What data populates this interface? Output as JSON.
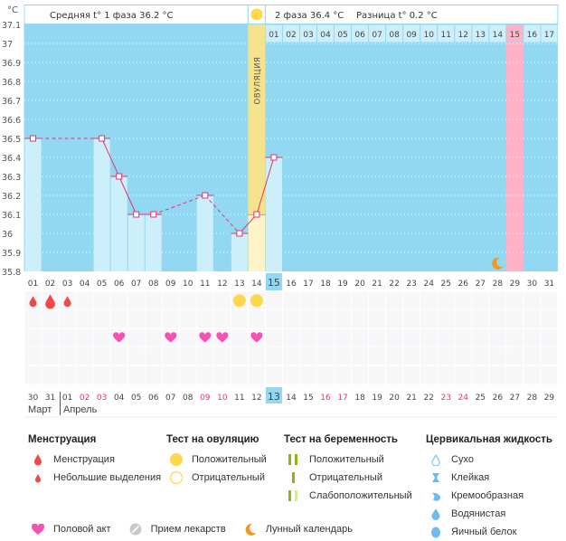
{
  "chart_data": {
    "type": "line",
    "title": "",
    "ylabel": "°C",
    "ylim": [
      35.8,
      37.1
    ],
    "yticks": [
      "37.1",
      "37",
      "36.9",
      "36.8",
      "36.7",
      "36.6",
      "36.5",
      "36.4",
      "36.3",
      "36.2",
      "36.1",
      "36",
      "35.9",
      "35.8"
    ],
    "grid": true,
    "cycle_days": [
      "01",
      "02",
      "03",
      "04",
      "05",
      "06",
      "07",
      "08",
      "09",
      "10",
      "11",
      "12",
      "13",
      "14",
      "15",
      "16",
      "17",
      "18",
      "19",
      "20",
      "21",
      "22",
      "23",
      "24",
      "25",
      "26",
      "27",
      "28",
      "29",
      "30",
      "31"
    ],
    "temperatures": [
      36.5,
      null,
      null,
      null,
      36.5,
      36.3,
      36.1,
      36.1,
      null,
      null,
      36.2,
      null,
      36.0,
      36.1,
      36.4,
      null,
      null,
      null,
      null,
      null,
      null,
      null,
      null,
      null,
      null,
      null,
      null,
      null,
      null,
      null,
      null
    ],
    "ovulation_day_index": 13,
    "ovulation_label": "ОВУЛЯЦИЯ",
    "current_day_index": 14,
    "phase2_days": [
      "01",
      "02",
      "03",
      "04",
      "05",
      "06",
      "07",
      "08",
      "09",
      "10",
      "11",
      "12",
      "13",
      "14",
      "15",
      "16",
      "17"
    ],
    "phase2_highlight_day": "15",
    "highlight_cycle_day_index": 28,
    "moon_day_index": 27,
    "series_color": "#e8336b"
  },
  "header": {
    "unit": "°C",
    "phase1_avg": "Средняя t° 1 фаза 36.2 °C",
    "phase2_avg": "2 фаза 36.4 °C",
    "difference": "Разница t° 0.2 °C"
  },
  "markers": {
    "menstruation": [
      {
        "day": 0,
        "size": "small"
      },
      {
        "day": 1,
        "size": "large"
      },
      {
        "day": 2,
        "size": "small"
      }
    ],
    "ovulation_test_positive": [
      12,
      13
    ],
    "intercourse": [
      5,
      8,
      10,
      11,
      13
    ]
  },
  "calendar": {
    "dates": [
      "30",
      "31",
      "01",
      "02",
      "03",
      "04",
      "05",
      "06",
      "07",
      "08",
      "09",
      "10",
      "11",
      "12",
      "13",
      "14",
      "15",
      "16",
      "17",
      "18",
      "19",
      "20",
      "21",
      "22",
      "23",
      "24",
      "25",
      "26",
      "27",
      "28",
      "29"
    ],
    "red_indices": [
      3,
      4,
      10,
      11,
      17,
      18,
      24,
      25
    ],
    "today_index": 14,
    "months": [
      {
        "label": "Март"
      },
      {
        "label": "Апрель"
      }
    ]
  },
  "legend": {
    "menstruation": {
      "title": "Менструация",
      "items": [
        "Менструация",
        "Небольшие выделения"
      ]
    },
    "ovulation_test": {
      "title": "Тест на овуляцию",
      "items": [
        "Положительный",
        "Отрицательный"
      ]
    },
    "pregnancy_test": {
      "title": "Тест на беременность",
      "items": [
        "Положительный",
        "Отрицательный",
        "Слабоположительный"
      ]
    },
    "cervical_fluid": {
      "title": "Цервикальная жидкость",
      "items": [
        "Сухо",
        "Клейкая",
        "Кремообразная",
        "Водянистая",
        "Яичный белок"
      ]
    },
    "bottom": [
      "Половой акт",
      "Прием лекарств",
      "Лунный календарь"
    ]
  },
  "colors": {
    "chart_bg": "#93d8f2",
    "bar": "#cdeefb",
    "ovulation": "#f5e38c",
    "ovulation_light": "#fdf5c8",
    "pink": "#ffb2c8",
    "line": "#e8336b",
    "drop": "#f24848",
    "heart": "#f553b4",
    "sun": "#fdd84a",
    "moon": "#f5991e",
    "red_date": "#e8336b",
    "green": "#8db61d",
    "green_light": "#d5e8a8",
    "fluid": "#6cbcf0"
  }
}
